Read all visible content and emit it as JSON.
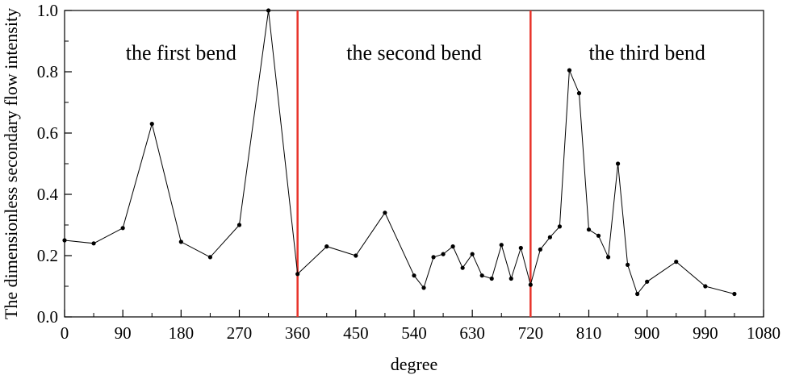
{
  "chart_data": {
    "type": "line",
    "title": "",
    "xlabel": "degree",
    "ylabel": "The dimensionless secondary flow intensity",
    "xlim": [
      0,
      1080
    ],
    "ylim": [
      0,
      1.0
    ],
    "xticks": [
      0,
      90,
      180,
      270,
      360,
      450,
      540,
      630,
      720,
      810,
      900,
      990,
      1080
    ],
    "yticks": [
      0.0,
      0.2,
      0.4,
      0.6,
      0.8,
      1.0
    ],
    "xtick_labels": [
      "0",
      "90",
      "180",
      "270",
      "360",
      "450",
      "540",
      "630",
      "720",
      "810",
      "900",
      "990",
      "1080"
    ],
    "ytick_labels": [
      "0.0",
      "0.2",
      "0.4",
      "0.6",
      "0.8",
      "1.0"
    ],
    "grid": false,
    "series": [
      {
        "x": [
          0,
          45,
          90,
          135,
          180,
          225,
          270,
          315,
          360,
          405,
          450,
          495,
          540,
          555,
          570,
          585,
          600,
          615,
          630,
          645,
          660,
          675,
          690,
          705,
          720,
          735,
          750,
          765,
          780,
          795,
          810,
          825,
          840,
          855,
          870,
          885,
          900,
          945,
          990,
          1035
        ],
        "y": [
          0.25,
          0.24,
          0.29,
          0.63,
          0.245,
          0.195,
          0.3,
          1.0,
          0.14,
          0.23,
          0.2,
          0.34,
          0.135,
          0.095,
          0.195,
          0.205,
          0.23,
          0.16,
          0.205,
          0.135,
          0.125,
          0.235,
          0.125,
          0.225,
          0.105,
          0.22,
          0.26,
          0.295,
          0.805,
          0.73,
          0.285,
          0.265,
          0.195,
          0.5,
          0.17,
          0.075,
          0.115,
          0.18,
          0.1,
          0.075
        ],
        "color": "#000000"
      }
    ],
    "vlines": [
      {
        "x": 360,
        "color": "#e8332a"
      },
      {
        "x": 720,
        "color": "#e8332a"
      }
    ],
    "annotations": [
      {
        "text": "the first bend",
        "x": 180,
        "y": 0.84
      },
      {
        "text": "the second bend",
        "x": 540,
        "y": 0.84
      },
      {
        "text": "the third bend",
        "x": 900,
        "y": 0.84
      }
    ]
  }
}
